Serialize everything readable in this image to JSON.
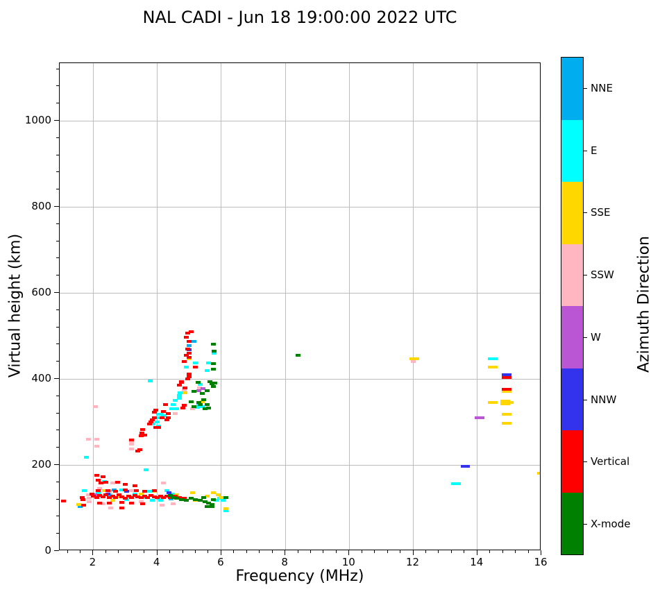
{
  "title": "NAL CADI - Jun 18 19:00:00 2022 UTC",
  "axes": {
    "xlabel": "Frequency (MHz)",
    "ylabel": "Virtual height (km)",
    "x_ticks": [
      2,
      4,
      6,
      8,
      10,
      12,
      14,
      16
    ],
    "y_ticks": [
      0,
      200,
      400,
      600,
      800,
      1000
    ],
    "x_minor_step": 0.4,
    "y_minor_step": 40,
    "xlim": [
      0.95,
      16
    ],
    "ylim": [
      0,
      1134
    ],
    "grid": "on",
    "grid_color": "#bdbdbd"
  },
  "colorbar": {
    "label": "Azimuth Direction",
    "segments": [
      {
        "label": "NNE",
        "color": "#00AEEF"
      },
      {
        "label": "E",
        "color": "#00FFFF"
      },
      {
        "label": "SSE",
        "color": "#FFD700"
      },
      {
        "label": "SSW",
        "color": "#FFB6C1"
      },
      {
        "label": "W",
        "color": "#BA55D3"
      },
      {
        "label": "NNW",
        "color": "#3333EE"
      },
      {
        "label": "Vertical",
        "color": "#FF0000"
      },
      {
        "label": "X-mode",
        "color": "#008000"
      }
    ]
  },
  "chart_data": {
    "type": "scatter",
    "title": "NAL CADI - Jun 18 19:00:00 2022 UTC",
    "xlabel": "Frequency (MHz)",
    "ylabel": "Virtual height (km)",
    "xlim": [
      0.95,
      16
    ],
    "ylim": [
      0,
      1134
    ],
    "legend_position": "right-colorbar",
    "marker": {
      "width_mhz": 0.16,
      "height_km": 7
    },
    "series": [
      {
        "name": "NNE",
        "color": "#00AEEF",
        "points": [
          [
            5.15,
            487
          ],
          [
            5.0,
            478
          ],
          [
            2.65,
            142
          ],
          [
            3.1,
            128
          ],
          [
            4.42,
            121
          ],
          [
            1.58,
            104
          ]
        ]
      },
      {
        "name": "E",
        "color": "#00FFFF",
        "points": [
          [
            3.78,
            395
          ],
          [
            3.85,
            295
          ],
          [
            4.05,
            290
          ],
          [
            4.0,
            300
          ],
          [
            4.05,
            318
          ],
          [
            4.07,
            310
          ],
          [
            4.1,
            318
          ],
          [
            4.2,
            315
          ],
          [
            4.45,
            330
          ],
          [
            4.5,
            340
          ],
          [
            4.55,
            350
          ],
          [
            4.6,
            330
          ],
          [
            4.7,
            355
          ],
          [
            4.7,
            362
          ],
          [
            4.72,
            368
          ],
          [
            4.9,
            427
          ],
          [
            5.2,
            437
          ],
          [
            5.25,
            334
          ],
          [
            5.3,
            338
          ],
          [
            5.35,
            387
          ],
          [
            5.4,
            335
          ],
          [
            5.78,
            460
          ],
          [
            5.6,
            437
          ],
          [
            5.55,
            420
          ],
          [
            14.4,
            447
          ],
          [
            14.55,
            447
          ],
          [
            13.25,
            156
          ],
          [
            13.4,
            156
          ],
          [
            1.72,
            140
          ],
          [
            1.78,
            218
          ],
          [
            2.15,
            135
          ],
          [
            2.5,
            130
          ],
          [
            2.9,
            142
          ],
          [
            3.05,
            120
          ],
          [
            3.3,
            133
          ],
          [
            3.6,
            125
          ],
          [
            3.75,
            138
          ],
          [
            3.85,
            118
          ],
          [
            4.05,
            122
          ],
          [
            4.1,
            118
          ],
          [
            4.3,
            140
          ],
          [
            4.45,
            133
          ],
          [
            5.85,
            118
          ],
          [
            5.95,
            122
          ],
          [
            6.05,
            118
          ],
          [
            6.15,
            94
          ],
          [
            3.65,
            189
          ],
          [
            2.35,
            162
          ]
        ]
      },
      {
        "name": "SSE",
        "color": "#FFD700",
        "points": [
          [
            4.86,
            368
          ],
          [
            5.0,
            447
          ],
          [
            5.4,
            347
          ],
          [
            1.55,
            108
          ],
          [
            2.1,
            128
          ],
          [
            2.35,
            140
          ],
          [
            2.6,
            118
          ],
          [
            2.8,
            126
          ],
          [
            3.5,
            133
          ],
          [
            3.9,
            138
          ],
          [
            4.6,
            131
          ],
          [
            5.1,
            136
          ],
          [
            5.2,
            117
          ],
          [
            5.55,
            128
          ],
          [
            5.75,
            135
          ],
          [
            5.9,
            130
          ],
          [
            6.0,
            125
          ],
          [
            6.15,
            98
          ],
          [
            11.95,
            447
          ],
          [
            12.1,
            447
          ],
          [
            14.4,
            427
          ],
          [
            14.55,
            427
          ],
          [
            14.85,
            371
          ],
          [
            15.0,
            371
          ],
          [
            14.4,
            346
          ],
          [
            14.55,
            346
          ],
          [
            14.8,
            348
          ],
          [
            14.95,
            348
          ],
          [
            14.8,
            342
          ],
          [
            14.95,
            342
          ],
          [
            15.05,
            345
          ],
          [
            14.85,
            318
          ],
          [
            15.0,
            318
          ],
          [
            14.85,
            297
          ],
          [
            15.0,
            297
          ],
          [
            15.95,
            180
          ]
        ]
      },
      {
        "name": "SSW",
        "color": "#FFB6C1",
        "points": [
          [
            1.85,
            260
          ],
          [
            2.06,
            335
          ],
          [
            2.1,
            260
          ],
          [
            2.1,
            244
          ],
          [
            1.85,
            130
          ],
          [
            1.87,
            122
          ],
          [
            1.88,
            115
          ],
          [
            3.2,
            255
          ],
          [
            3.2,
            248
          ],
          [
            3.2,
            237
          ],
          [
            4.55,
            319
          ],
          [
            4.85,
            374
          ],
          [
            5.32,
            379
          ],
          [
            5.1,
            330
          ],
          [
            2.2,
            145
          ],
          [
            2.5,
            138
          ],
          [
            2.6,
            158
          ],
          [
            3.2,
            140
          ],
          [
            2.55,
            100
          ],
          [
            3.5,
            115
          ],
          [
            2.3,
            110
          ],
          [
            4.15,
            107
          ],
          [
            4.5,
            110
          ],
          [
            4.2,
            158
          ],
          [
            12.0,
            441
          ]
        ]
      },
      {
        "name": "W",
        "color": "#BA55D3",
        "points": [
          [
            5.42,
            377
          ],
          [
            5.3,
            373
          ],
          [
            2.3,
            126
          ],
          [
            2.05,
            131
          ],
          [
            14.0,
            310
          ],
          [
            14.15,
            310
          ]
        ]
      },
      {
        "name": "NNW",
        "color": "#3333EE",
        "points": [
          [
            5.0,
            468
          ],
          [
            2.45,
            133
          ],
          [
            3.05,
            138
          ],
          [
            4.36,
            135
          ],
          [
            13.55,
            197
          ],
          [
            13.7,
            197
          ],
          [
            14.85,
            409
          ],
          [
            15.0,
            409
          ]
        ]
      },
      {
        "name": "Vertical",
        "color": "#FF0000",
        "points": [
          [
            3.2,
            258
          ],
          [
            3.4,
            233
          ],
          [
            3.45,
            236
          ],
          [
            3.5,
            268
          ],
          [
            3.52,
            275
          ],
          [
            3.55,
            282
          ],
          [
            3.6,
            270
          ],
          [
            3.75,
            295
          ],
          [
            3.8,
            300
          ],
          [
            3.85,
            305
          ],
          [
            3.9,
            310
          ],
          [
            3.9,
            322
          ],
          [
            3.95,
            327
          ],
          [
            3.95,
            287
          ],
          [
            4.05,
            287
          ],
          [
            4.15,
            310
          ],
          [
            4.2,
            325
          ],
          [
            4.25,
            340
          ],
          [
            4.3,
            305
          ],
          [
            4.35,
            320
          ],
          [
            4.35,
            310
          ],
          [
            4.8,
            333
          ],
          [
            4.85,
            338
          ],
          [
            4.86,
            379
          ],
          [
            4.75,
            392
          ],
          [
            4.7,
            385
          ],
          [
            4.95,
            400
          ],
          [
            5.0,
            405
          ],
          [
            5.0,
            412
          ],
          [
            4.85,
            440
          ],
          [
            5.2,
            427
          ],
          [
            4.9,
            455
          ],
          [
            5.0,
            450
          ],
          [
            5.0,
            460
          ],
          [
            4.95,
            470
          ],
          [
            5.0,
            487
          ],
          [
            4.95,
            506
          ],
          [
            5.05,
            510
          ],
          [
            4.9,
            497
          ],
          [
            4.75,
            394
          ],
          [
            14.85,
            404
          ],
          [
            15.0,
            404
          ],
          [
            14.85,
            376
          ],
          [
            15.0,
            376
          ],
          [
            2.1,
            176
          ],
          [
            2.15,
            165
          ],
          [
            2.25,
            158
          ],
          [
            2.3,
            172
          ],
          [
            2.4,
            160
          ],
          [
            2.75,
            160
          ],
          [
            3.0,
            155
          ],
          [
            3.3,
            152
          ],
          [
            2.0,
            127
          ],
          [
            2.1,
            124
          ],
          [
            2.2,
            129
          ],
          [
            2.3,
            126
          ],
          [
            2.4,
            131
          ],
          [
            2.5,
            124
          ],
          [
            2.6,
            128
          ],
          [
            2.7,
            125
          ],
          [
            2.8,
            130
          ],
          [
            2.9,
            126
          ],
          [
            3.0,
            123
          ],
          [
            3.1,
            128
          ],
          [
            3.2,
            125
          ],
          [
            3.3,
            129
          ],
          [
            3.4,
            126
          ],
          [
            3.5,
            124
          ],
          [
            3.6,
            128
          ],
          [
            3.7,
            125
          ],
          [
            3.8,
            129
          ],
          [
            3.9,
            126
          ],
          [
            4.0,
            124
          ],
          [
            4.1,
            127
          ],
          [
            4.2,
            125
          ],
          [
            4.3,
            128
          ],
          [
            2.15,
            140
          ],
          [
            2.45,
            141
          ],
          [
            2.7,
            139
          ],
          [
            3.0,
            142
          ],
          [
            3.35,
            140
          ],
          [
            3.6,
            139
          ],
          [
            3.9,
            141
          ],
          [
            2.2,
            112
          ],
          [
            2.5,
            111
          ],
          [
            2.9,
            100
          ],
          [
            3.2,
            112
          ],
          [
            3.55,
            110
          ],
          [
            2.9,
            113
          ],
          [
            1.08,
            116
          ],
          [
            1.65,
            125
          ],
          [
            1.68,
            120
          ],
          [
            1.7,
            107
          ],
          [
            1.95,
            133
          ],
          [
            4.4,
            125
          ],
          [
            4.55,
            128
          ],
          [
            4.7,
            125
          ],
          [
            4.85,
            122
          ]
        ]
      },
      {
        "name": "X-mode",
        "color": "#008000",
        "points": [
          [
            5.05,
            347
          ],
          [
            5.15,
            371
          ],
          [
            5.27,
            392
          ],
          [
            5.3,
            345
          ],
          [
            5.35,
            340
          ],
          [
            5.4,
            366
          ],
          [
            5.45,
            352
          ],
          [
            5.5,
            330
          ],
          [
            5.55,
            340
          ],
          [
            5.55,
            373
          ],
          [
            5.6,
            333
          ],
          [
            5.65,
            393
          ],
          [
            5.7,
            388
          ],
          [
            5.75,
            383
          ],
          [
            5.8,
            390
          ],
          [
            5.15,
            335
          ],
          [
            5.75,
            480
          ],
          [
            5.78,
            465
          ],
          [
            5.75,
            435
          ],
          [
            5.75,
            423
          ],
          [
            8.4,
            455
          ],
          [
            4.4,
            129
          ],
          [
            4.5,
            125
          ],
          [
            4.6,
            122
          ],
          [
            4.75,
            120
          ],
          [
            4.9,
            118
          ],
          [
            5.05,
            122
          ],
          [
            5.2,
            120
          ],
          [
            5.35,
            118
          ],
          [
            5.5,
            115
          ],
          [
            5.6,
            112
          ],
          [
            5.7,
            108
          ],
          [
            5.75,
            120
          ],
          [
            5.45,
            125
          ],
          [
            6.15,
            124
          ],
          [
            5.55,
            104
          ],
          [
            5.7,
            104
          ]
        ]
      }
    ]
  }
}
